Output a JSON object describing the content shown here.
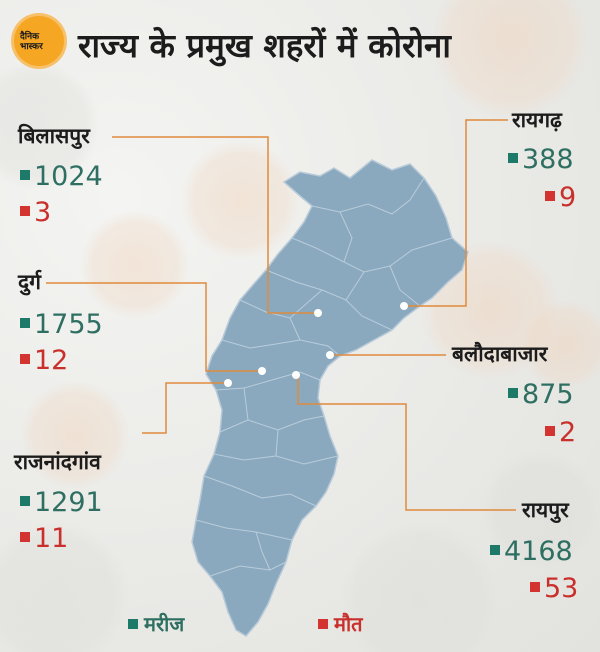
{
  "logo": {
    "text": "दैनिक भास्कर"
  },
  "title": "राज्य के प्रमुख शहरों में कोरोना",
  "cities": [
    {
      "name": "बिलासपुर",
      "patients": "1024",
      "deaths": "3"
    },
    {
      "name": "रायगढ़",
      "patients": "388",
      "deaths": "9"
    },
    {
      "name": "दुर्ग",
      "patients": "1755",
      "deaths": "12"
    },
    {
      "name": "बलौदाबाजार",
      "patients": "875",
      "deaths": "2"
    },
    {
      "name": "राजनांदगांव",
      "patients": "1291",
      "deaths": "11"
    },
    {
      "name": "रायपुर",
      "patients": "4168",
      "deaths": "53"
    }
  ],
  "legend": {
    "patients": "मरीज",
    "deaths": "मौत"
  },
  "colors": {
    "patients": "#1e7a68",
    "deaths": "#d4342f",
    "map_fill": "#8aa9bf",
    "leader_line": "#e08a3c"
  }
}
